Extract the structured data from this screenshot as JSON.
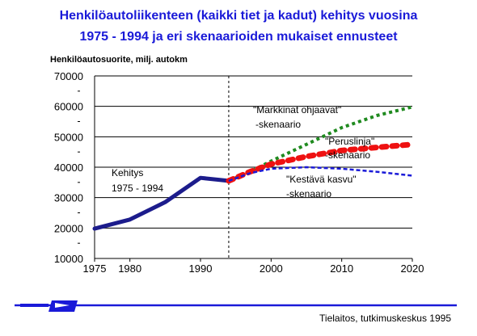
{
  "chart_data": {
    "type": "line",
    "title_lines": [
      "Henkilöautoliikenteen (kaikki tiet ja kadut) kehitys vuosina",
      "1975 - 1994 ja eri skenaarioiden mukaiset ennusteet"
    ],
    "ylabel": "Henkilöautosuorite, milj. autokm",
    "xlabel": "",
    "xlim": [
      1975,
      2020
    ],
    "ylim": [
      10000,
      70000
    ],
    "x_ticks": [
      1975,
      1980,
      1990,
      2000,
      2010,
      2020
    ],
    "y_ticks": [
      10000,
      20000,
      30000,
      40000,
      50000,
      60000,
      70000
    ],
    "grid": "horizontal",
    "divider_year": 1994,
    "series": [
      {
        "name": "Kehitys 1975 - 1994",
        "color": "#1c1c8c",
        "style": "solid",
        "x": [
          1975,
          1980,
          1985,
          1990,
          1994
        ],
        "y": [
          19800,
          22800,
          28500,
          36500,
          35500
        ]
      },
      {
        "name": "\"Markkinat ohjaavat\" -skenaario",
        "color": "#1f8a1f",
        "style": "dotted",
        "x": [
          1994,
          1997,
          2000,
          2005,
          2010,
          2015,
          2020
        ],
        "y": [
          35500,
          38500,
          42000,
          47500,
          53000,
          57000,
          59800
        ]
      },
      {
        "name": "\"Peruslinja\" -skenaario",
        "color": "#ee1111",
        "style": "dotted",
        "x": [
          1994,
          1997,
          2000,
          2005,
          2010,
          2015,
          2020
        ],
        "y": [
          35500,
          38500,
          41000,
          43500,
          45500,
          46500,
          47500
        ]
      },
      {
        "name": "\"Kestävä kasvu\" -skenaario",
        "color": "#1a1ad8",
        "style": "dashed",
        "x": [
          1994,
          1997,
          2000,
          2005,
          2010,
          2015,
          2020
        ],
        "y": [
          35500,
          38000,
          39500,
          40000,
          39500,
          38500,
          37200
        ]
      }
    ],
    "annotations": [
      {
        "series_index": 0,
        "lines": [
          "Kehitys",
          "1975 - 1994"
        ]
      },
      {
        "series_index": 1,
        "lines": [
          "\"Markkinat ohjaavat\"",
          "-skenaario"
        ]
      },
      {
        "series_index": 2,
        "lines": [
          "\"Peruslinja\"",
          "-skenaario"
        ]
      },
      {
        "series_index": 3,
        "lines": [
          "\"Kestävä kasvu\"",
          "-skenaario"
        ]
      }
    ]
  },
  "footer": {
    "source": "Tielaitos, tutkimuskeskus 1995",
    "logo_color": "#1a1ad8"
  }
}
